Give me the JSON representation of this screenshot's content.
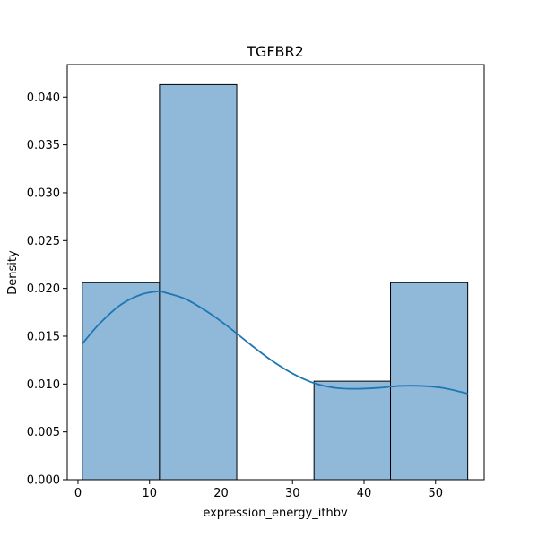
{
  "chart_data": {
    "type": "bar",
    "subtype": "histogram-with-kde",
    "title": "TGFBR2",
    "xlabel": "expression_energy_ithbv",
    "ylabel": "Density",
    "xlim": [
      -1.5,
      56.8
    ],
    "ylim": [
      0,
      0.0434
    ],
    "x_ticks": [
      0,
      10,
      20,
      30,
      40,
      50
    ],
    "y_ticks": [
      0.0,
      0.005,
      0.01,
      0.015,
      0.02,
      0.025,
      0.03,
      0.035,
      0.04
    ],
    "y_tick_labels": [
      "0.000",
      "0.005",
      "0.010",
      "0.015",
      "0.020",
      "0.025",
      "0.030",
      "0.035",
      "0.040"
    ],
    "bins": [
      {
        "x0": 0.6,
        "x1": 11.4,
        "density": 0.0206
      },
      {
        "x0": 11.4,
        "x1": 22.2,
        "density": 0.0413
      },
      {
        "x0": 22.2,
        "x1": 33.0,
        "density": 0.0
      },
      {
        "x0": 33.0,
        "x1": 43.7,
        "density": 0.0103
      },
      {
        "x0": 43.7,
        "x1": 54.5,
        "density": 0.0206
      }
    ],
    "kde": {
      "x": [
        0.6,
        3,
        6,
        9,
        11.4,
        12,
        15,
        18,
        21,
        24,
        27,
        30,
        33,
        36,
        39,
        42,
        45,
        48,
        51,
        54.5
      ],
      "y": [
        0.0142,
        0.0163,
        0.0183,
        0.0194,
        0.0197,
        0.0196,
        0.0189,
        0.0176,
        0.016,
        0.0142,
        0.0125,
        0.0111,
        0.0101,
        0.0096,
        0.0095,
        0.0096,
        0.0098,
        0.0098,
        0.0096,
        0.009
      ]
    },
    "grid": false,
    "colors": {
      "bar_fill": "#8fb8d9",
      "bar_edge": "#000000",
      "kde_line": "#1f77b4"
    }
  }
}
